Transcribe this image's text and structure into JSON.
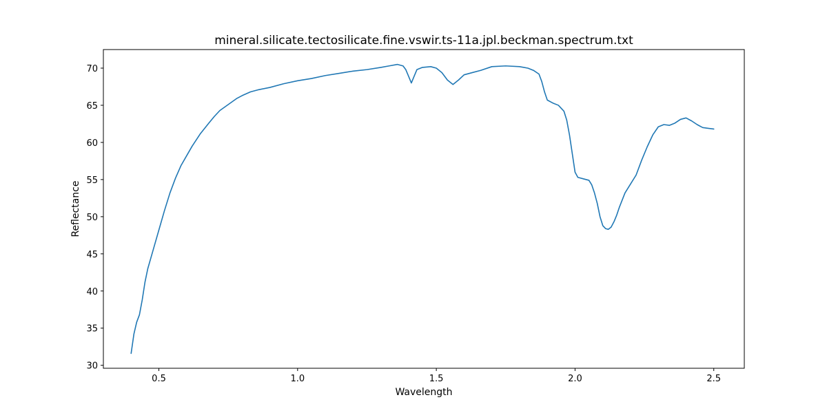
{
  "chart_data": {
    "type": "line",
    "title": "mineral.silicate.tectosilicate.fine.vswir.ts-11a.jpl.beckman.spectrum.txt",
    "xlabel": "Wavelength",
    "ylabel": "Reflectance",
    "xlim": [
      0.3,
      2.61
    ],
    "ylim": [
      29.6,
      72.5
    ],
    "xticks": [
      0.5,
      1.0,
      1.5,
      2.0,
      2.5
    ],
    "xtick_labels": [
      "0.5",
      "1.0",
      "1.5",
      "2.0",
      "2.5"
    ],
    "yticks": [
      30,
      35,
      40,
      45,
      50,
      55,
      60,
      65,
      70
    ],
    "ytick_labels": [
      "30",
      "35",
      "40",
      "45",
      "50",
      "55",
      "60",
      "65",
      "70"
    ],
    "grid": false,
    "series": [
      {
        "name": "spectrum",
        "color": "#1f77b4",
        "x": [
          0.4,
          0.41,
          0.42,
          0.43,
          0.44,
          0.45,
          0.46,
          0.48,
          0.5,
          0.52,
          0.54,
          0.56,
          0.58,
          0.6,
          0.62,
          0.65,
          0.68,
          0.7,
          0.72,
          0.75,
          0.78,
          0.8,
          0.83,
          0.86,
          0.9,
          0.95,
          1.0,
          1.05,
          1.1,
          1.15,
          1.2,
          1.25,
          1.3,
          1.33,
          1.36,
          1.38,
          1.39,
          1.4,
          1.41,
          1.42,
          1.43,
          1.45,
          1.48,
          1.5,
          1.52,
          1.54,
          1.56,
          1.58,
          1.6,
          1.63,
          1.66,
          1.7,
          1.75,
          1.8,
          1.83,
          1.85,
          1.87,
          1.88,
          1.89,
          1.9,
          1.92,
          1.94,
          1.96,
          1.97,
          1.98,
          1.99,
          2.0,
          2.01,
          2.03,
          2.05,
          2.06,
          2.07,
          2.08,
          2.09,
          2.1,
          2.11,
          2.12,
          2.13,
          2.14,
          2.15,
          2.16,
          2.18,
          2.2,
          2.22,
          2.24,
          2.26,
          2.28,
          2.3,
          2.32,
          2.34,
          2.36,
          2.38,
          2.4,
          2.42,
          2.44,
          2.46,
          2.48,
          2.5
        ],
        "y": [
          31.6,
          34.2,
          35.8,
          36.8,
          38.8,
          41.2,
          43.0,
          45.6,
          48.2,
          50.8,
          53.2,
          55.2,
          56.9,
          58.2,
          59.5,
          61.2,
          62.6,
          63.5,
          64.3,
          65.1,
          65.9,
          66.3,
          66.8,
          67.1,
          67.4,
          67.9,
          68.3,
          68.6,
          69.0,
          69.3,
          69.6,
          69.8,
          70.1,
          70.3,
          70.5,
          70.3,
          69.8,
          68.9,
          68.0,
          68.9,
          69.8,
          70.1,
          70.2,
          70.0,
          69.4,
          68.4,
          67.8,
          68.4,
          69.1,
          69.4,
          69.7,
          70.2,
          70.3,
          70.2,
          70.0,
          69.7,
          69.2,
          68.2,
          66.8,
          65.7,
          65.3,
          65.0,
          64.2,
          63.0,
          61.0,
          58.5,
          56.0,
          55.3,
          55.1,
          54.9,
          54.3,
          53.2,
          51.8,
          50.0,
          48.8,
          48.4,
          48.3,
          48.6,
          49.3,
          50.2,
          51.3,
          53.2,
          54.4,
          55.6,
          57.6,
          59.4,
          61.0,
          62.1,
          62.4,
          62.3,
          62.6,
          63.1,
          63.3,
          62.9,
          62.4,
          62.0,
          61.9,
          61.8
        ]
      }
    ]
  }
}
